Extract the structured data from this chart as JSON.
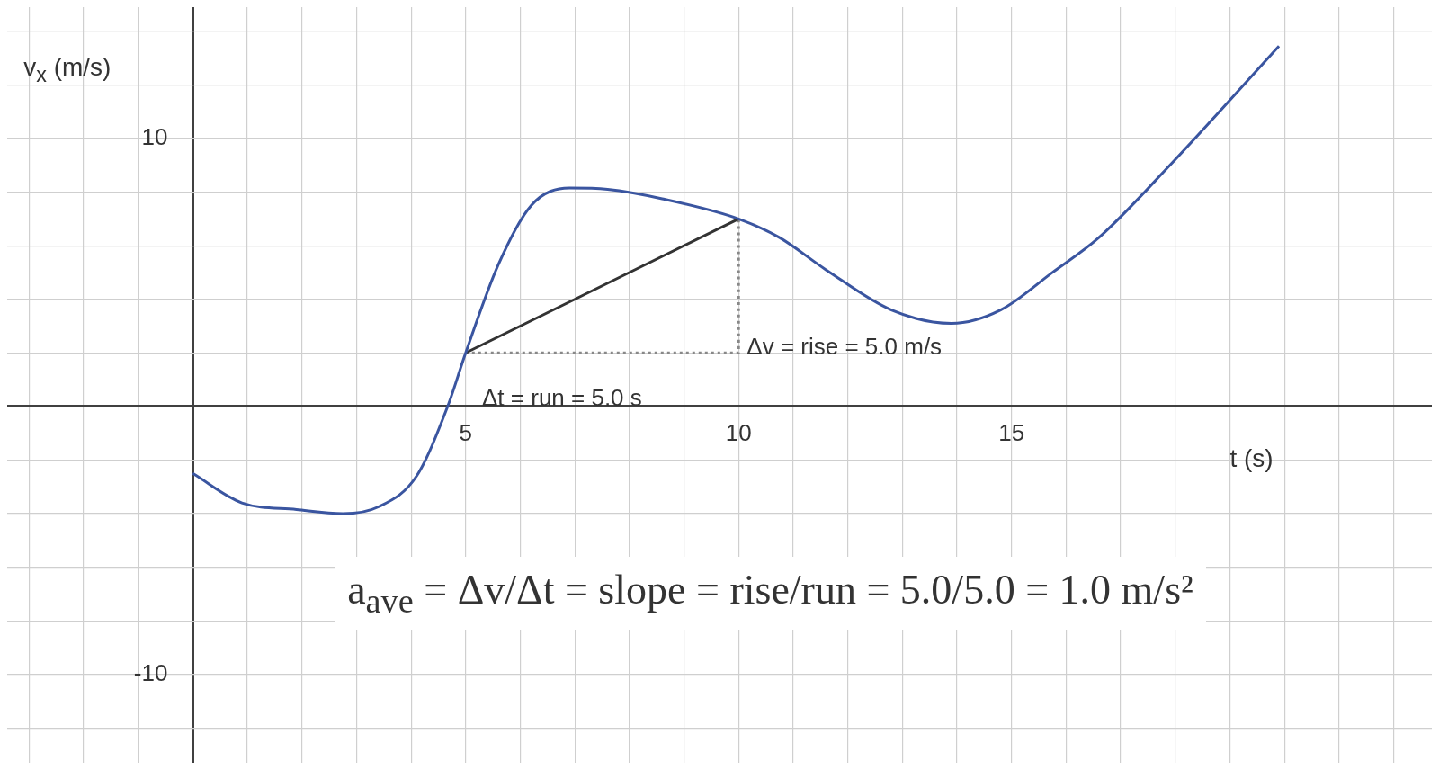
{
  "chart_data": {
    "type": "line",
    "xlabel": "t (s)",
    "ylabel": "v$_{x}$ (m/s)",
    "xlim": [
      -3.4,
      22.7
    ],
    "ylim": [
      -13.3,
      14.9
    ],
    "xticks": [
      {
        "value": -3,
        "label": null
      },
      {
        "value": -2,
        "label": null
      },
      {
        "value": -1,
        "label": null
      },
      {
        "value": 0,
        "label": null
      },
      {
        "value": 1,
        "label": null
      },
      {
        "value": 2,
        "label": null
      },
      {
        "value": 3,
        "label": null
      },
      {
        "value": 4,
        "label": null
      },
      5,
      {
        "value": 6,
        "label": null
      },
      {
        "value": 7,
        "label": null
      },
      {
        "value": 8,
        "label": null
      },
      {
        "value": 9,
        "label": null
      },
      10,
      {
        "value": 11,
        "label": null
      },
      {
        "value": 12,
        "label": null
      },
      {
        "value": 13,
        "label": null
      },
      {
        "value": 14,
        "label": null
      },
      15,
      {
        "value": 16,
        "label": null
      },
      {
        "value": 17,
        "label": null
      },
      {
        "value": 18,
        "label": null
      },
      {
        "value": 19,
        "label": null
      },
      {
        "value": 20,
        "label": null
      },
      {
        "value": 21,
        "label": null
      },
      {
        "value": 22,
        "label": null
      }
    ],
    "yticks": [
      {
        "value": -12,
        "label": null
      },
      -10,
      {
        "value": -8,
        "label": null
      },
      {
        "value": -6,
        "label": null
      },
      {
        "value": -4,
        "label": null
      },
      {
        "value": -2,
        "label": null
      },
      {
        "value": 0,
        "label": null
      },
      {
        "value": 2,
        "label": null
      },
      {
        "value": 4,
        "label": null
      },
      {
        "value": 6,
        "label": null
      },
      {
        "value": 8,
        "label": null
      },
      10,
      {
        "value": 12,
        "label": null
      },
      {
        "value": 14,
        "label": null
      }
    ],
    "grid": true,
    "legend": false,
    "marker": "none",
    "series": [
      {
        "color": "#3a55a0",
        "line_style": "solid",
        "x": [
          0,
          0.9,
          1.9,
          2.75,
          3.4,
          4.1,
          4.67,
          5,
          5.6,
          6.2,
          6.9,
          7.6,
          8.6,
          10,
          10.75,
          11.6,
          12.8,
          13.9,
          14.8,
          15.75,
          16.6,
          17.9,
          19.9
        ],
        "values": [
          -2.5,
          -3.6,
          -3.85,
          -4,
          -3.75,
          -2.6,
          0,
          2,
          5.3,
          7.5,
          8.15,
          8.1,
          7.75,
          7,
          6.3,
          5.1,
          3.6,
          3.1,
          3.6,
          5,
          6.3,
          9,
          13.45
        ]
      },
      {
        "color": "#333333",
        "line_style": "solid",
        "x": [
          5,
          10
        ],
        "values": [
          2,
          7
        ]
      },
      {
        "color": "#888888",
        "line_style": "dotted",
        "x": [
          5,
          10,
          10
        ],
        "values": [
          2,
          2,
          7
        ]
      }
    ],
    "annotations": [
      "Δv = rise = 5.0 m/s",
      "Δt = run = 5.0 s",
      "a$_{ave}$ = Δv/Δt = slope = rise/run = 5.0/5.0 = 1.0 m/s²"
    ]
  }
}
